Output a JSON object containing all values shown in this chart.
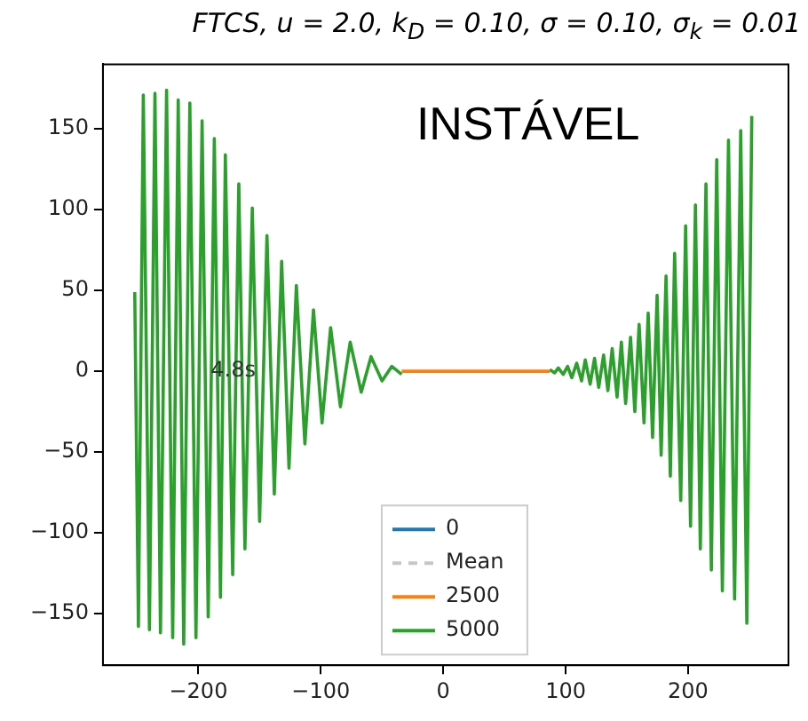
{
  "chart_data": {
    "type": "line",
    "title": "FTCS, u = 2.0, k$_{D}$ = 0.10, σ = 0.10, σ$_{k}$ = 0.01",
    "annotations": [
      "INSTÁVEL",
      {
        "text": "4.8s",
        "x": -190,
        "y": 0
      }
    ],
    "xlim": [
      -278,
      282
    ],
    "ylim": [
      -182,
      190
    ],
    "xticks": [
      -200,
      -100,
      0,
      100,
      200
    ],
    "yticks": [
      -150,
      -100,
      -50,
      0,
      50,
      100,
      150
    ],
    "grid": false,
    "legend": "bottom",
    "marker": "none",
    "series": [
      {
        "name": "0",
        "color": "#1f77b4"
      },
      {
        "name": "Mean",
        "color": "#c7c7c7",
        "line_style": "dashed"
      },
      {
        "name": "2500",
        "color": "#ff7f0e",
        "x": [
          -34,
          87
        ],
        "values": [
          0,
          0
        ]
      },
      {
        "name": "5000",
        "color": "#2ca02c",
        "x": [
          -252,
          -249,
          -245,
          -240,
          -235.5,
          -231,
          -226,
          -221,
          -216.5,
          -212,
          -207,
          -202,
          -197,
          -192,
          -187,
          -182,
          -178,
          -172,
          -167,
          -162,
          -156,
          -150,
          -144,
          -138,
          -132,
          -126,
          -120,
          -113,
          -106,
          -99,
          -92,
          -84,
          -76,
          -67,
          -59,
          -50,
          -42,
          -34,
          0,
          87,
          91,
          94,
          98,
          101.6,
          105,
          109,
          113,
          116,
          120,
          123.6,
          127,
          131,
          134.5,
          138,
          142,
          145.5,
          149,
          153,
          156.5,
          160,
          164,
          167.4,
          171,
          174.7,
          178,
          182,
          185.5,
          189,
          194,
          198,
          202,
          206,
          210,
          214.6,
          219,
          223.4,
          228,
          233,
          238,
          243,
          248,
          252
        ],
        "values": [
          49,
          -158,
          171,
          -160,
          172,
          -162,
          174,
          -165,
          168,
          -169,
          166,
          -165,
          155,
          -152,
          144,
          -140,
          134,
          -126,
          116,
          -110,
          101,
          -93,
          84,
          -76,
          68,
          -60,
          53,
          -45,
          38,
          -32,
          27,
          -22,
          18,
          -13,
          9,
          -6,
          3,
          -2,
          null,
          1,
          -1,
          2,
          -2,
          3,
          -4,
          5,
          -6,
          7,
          -8,
          8,
          -10,
          10,
          -12,
          14,
          -16,
          18,
          -20,
          21,
          -25,
          29,
          -32,
          36,
          -41,
          47,
          -52,
          59,
          -65,
          73,
          -80,
          90,
          -96,
          103,
          -110,
          116,
          -123,
          131,
          -136,
          143,
          -141,
          149,
          -156,
          158
        ]
      }
    ]
  }
}
